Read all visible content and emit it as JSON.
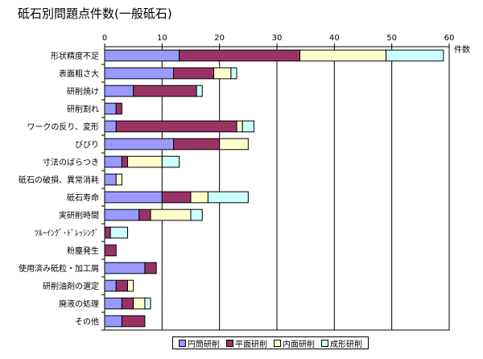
{
  "chart_data": {
    "type": "bar",
    "orientation": "horizontal",
    "stacked": true,
    "title": "砥石別問題点件数(一般砥石)",
    "unit_label": "件数",
    "xlim": [
      0,
      60
    ],
    "x_ticks": [
      0,
      10,
      20,
      30,
      40,
      50,
      60
    ],
    "grid": true,
    "legend_position": "bottom",
    "categories": [
      "形状精度不足",
      "表面粗さ大",
      "研削焼け",
      "研削割れ",
      "ワークの反り、変形",
      "びびり",
      "寸法のばらつき",
      "砥石の破損、異常消耗",
      "砥石寿命",
      "実研削時間",
      "ﾂﾙｰｲﾝｸﾞ･ﾄﾞﾚｯｼﾝｸﾞ",
      "粉塵発生",
      "使用済み砥粒・加工屑",
      "研削油剤の選定",
      "廃液の処理",
      "その他"
    ],
    "series": [
      {
        "name": "円筒研削",
        "color": "#9999ff",
        "values": [
          13,
          12,
          5,
          2,
          2,
          12,
          3,
          2,
          10,
          6,
          0,
          0,
          7,
          2,
          3,
          3
        ]
      },
      {
        "name": "平面研削",
        "color": "#993366",
        "values": [
          21,
          7,
          11,
          1,
          21,
          8,
          1,
          0,
          5,
          2,
          1,
          2,
          2,
          2,
          2,
          4
        ]
      },
      {
        "name": "内面研削",
        "color": "#ffffcc",
        "values": [
          15,
          3,
          0,
          0,
          1,
          5,
          6,
          1,
          3,
          7,
          0,
          0,
          0,
          1,
          2,
          0
        ]
      },
      {
        "name": "成形研削",
        "color": "#ccffff",
        "values": [
          10,
          1,
          1,
          0,
          2,
          0,
          3,
          0,
          7,
          2,
          3,
          0,
          0,
          0,
          1,
          0
        ]
      }
    ]
  }
}
